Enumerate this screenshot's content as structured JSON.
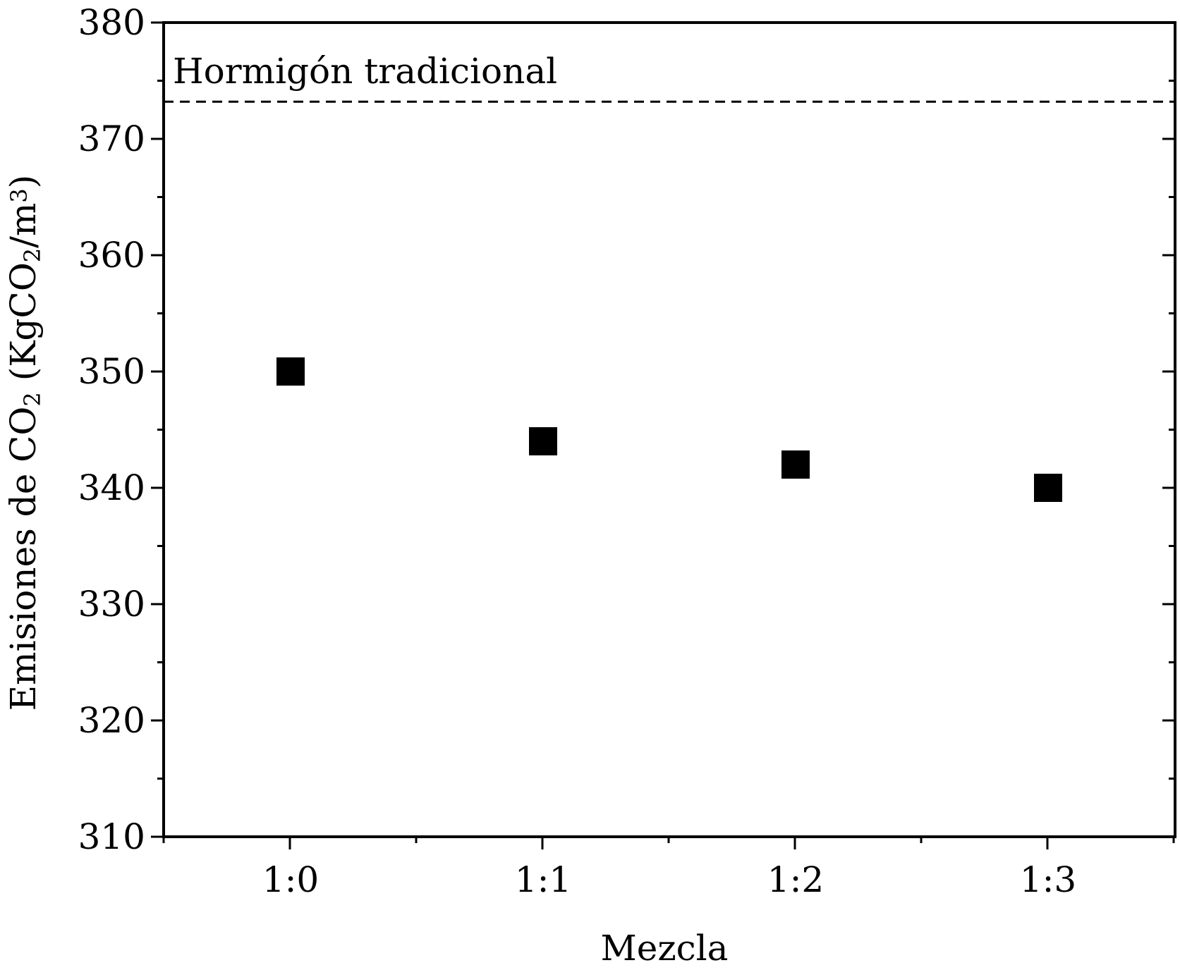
{
  "chart_data": {
    "type": "scatter",
    "xlabel": "Mezcla",
    "ylabel_parts": [
      "Emisiones de CO",
      "2",
      " (KgCO",
      "2",
      "/m",
      "3",
      ")"
    ],
    "categories": [
      "1:0",
      "1:1",
      "1:2",
      "1:3"
    ],
    "series": [
      {
        "values": [
          350,
          344,
          342,
          340
        ],
        "marker": "square",
        "color": "#000000"
      }
    ],
    "ylim": [
      310,
      380
    ],
    "yticks": [
      310,
      320,
      330,
      340,
      350,
      360,
      370,
      380
    ],
    "reference_line": {
      "label": "Hormigón tradicional",
      "value": 373.2,
      "style": "dashed"
    },
    "grid": false,
    "legend": "none"
  }
}
